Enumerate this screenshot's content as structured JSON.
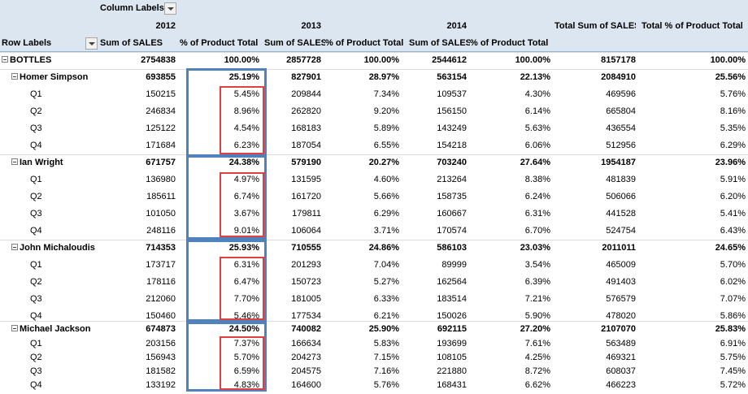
{
  "header": {
    "column_labels": "Column Labels",
    "row_labels": "Row Labels",
    "years": [
      "2012",
      "2013",
      "2014"
    ],
    "measure_sum": "Sum of SALES",
    "measure_pct": "% of Product Total",
    "total_sum": "Total Sum of SALES",
    "total_pct": "Total % of Product Total"
  },
  "rows": [
    {
      "label": "BOTTLES",
      "level": 0,
      "bold": true,
      "vals": [
        "2754838",
        "100.00%",
        "2857728",
        "100.00%",
        "2544612",
        "100.00%",
        "8157178",
        "100.00%"
      ]
    },
    {
      "label": "Homer Simpson",
      "level": 1,
      "bold": true,
      "vals": [
        "693855",
        "25.19%",
        "827901",
        "28.97%",
        "563154",
        "22.13%",
        "2084910",
        "25.56%"
      ]
    },
    {
      "label": "Q1",
      "level": 2,
      "bold": false,
      "vals": [
        "150215",
        "5.45%",
        "209844",
        "7.34%",
        "109537",
        "4.30%",
        "469596",
        "5.76%"
      ]
    },
    {
      "label": "Q2",
      "level": 2,
      "bold": false,
      "vals": [
        "246834",
        "8.96%",
        "262820",
        "9.20%",
        "156150",
        "6.14%",
        "665804",
        "8.16%"
      ]
    },
    {
      "label": "Q3",
      "level": 2,
      "bold": false,
      "vals": [
        "125122",
        "4.54%",
        "168183",
        "5.89%",
        "143249",
        "5.63%",
        "436554",
        "5.35%"
      ]
    },
    {
      "label": "Q4",
      "level": 2,
      "bold": false,
      "vals": [
        "171684",
        "6.23%",
        "187054",
        "6.55%",
        "154218",
        "6.06%",
        "512956",
        "6.29%"
      ]
    },
    {
      "label": "Ian Wright",
      "level": 1,
      "bold": true,
      "vals": [
        "671757",
        "24.38%",
        "579190",
        "20.27%",
        "703240",
        "27.64%",
        "1954187",
        "23.96%"
      ]
    },
    {
      "label": "Q1",
      "level": 2,
      "bold": false,
      "vals": [
        "136980",
        "4.97%",
        "131595",
        "4.60%",
        "213264",
        "8.38%",
        "481839",
        "5.91%"
      ]
    },
    {
      "label": "Q2",
      "level": 2,
      "bold": false,
      "vals": [
        "185611",
        "6.74%",
        "161720",
        "5.66%",
        "158735",
        "6.24%",
        "506066",
        "6.20%"
      ]
    },
    {
      "label": "Q3",
      "level": 2,
      "bold": false,
      "vals": [
        "101050",
        "3.67%",
        "179811",
        "6.29%",
        "160667",
        "6.31%",
        "441528",
        "5.41%"
      ]
    },
    {
      "label": "Q4",
      "level": 2,
      "bold": false,
      "vals": [
        "248116",
        "9.01%",
        "106064",
        "3.71%",
        "170574",
        "6.70%",
        "524754",
        "6.43%"
      ]
    },
    {
      "label": "John Michaloudis",
      "level": 1,
      "bold": true,
      "vals": [
        "714353",
        "25.93%",
        "710555",
        "24.86%",
        "586103",
        "23.03%",
        "2011011",
        "24.65%"
      ]
    },
    {
      "label": "Q1",
      "level": 2,
      "bold": false,
      "vals": [
        "173717",
        "6.31%",
        "201293",
        "7.04%",
        "89999",
        "3.54%",
        "465009",
        "5.70%"
      ]
    },
    {
      "label": "Q2",
      "level": 2,
      "bold": false,
      "vals": [
        "178116",
        "6.47%",
        "150723",
        "5.27%",
        "162564",
        "6.39%",
        "491403",
        "6.02%"
      ]
    },
    {
      "label": "Q3",
      "level": 2,
      "bold": false,
      "vals": [
        "212060",
        "7.70%",
        "181005",
        "6.33%",
        "183514",
        "7.21%",
        "576579",
        "7.07%"
      ]
    },
    {
      "label": "Q4",
      "level": 2,
      "bold": false,
      "vals": [
        "150460",
        "5.46%",
        "177534",
        "6.21%",
        "150026",
        "5.90%",
        "478020",
        "5.86%"
      ]
    },
    {
      "label": "Michael Jackson",
      "level": 1,
      "bold": true,
      "vals": [
        "674873",
        "24.50%",
        "740082",
        "25.90%",
        "692115",
        "27.20%",
        "2107070",
        "25.83%"
      ]
    },
    {
      "label": "Q1",
      "level": 2,
      "bold": false,
      "vals": [
        "203156",
        "7.37%",
        "166634",
        "5.83%",
        "193699",
        "7.61%",
        "563489",
        "6.91%"
      ]
    },
    {
      "label": "Q2",
      "level": 2,
      "bold": false,
      "vals": [
        "156943",
        "5.70%",
        "204273",
        "7.15%",
        "108105",
        "4.25%",
        "469321",
        "5.75%"
      ]
    },
    {
      "label": "Q3",
      "level": 2,
      "bold": false,
      "vals": [
        "181582",
        "6.59%",
        "204575",
        "7.16%",
        "221880",
        "8.72%",
        "608037",
        "7.45%"
      ]
    },
    {
      "label": "Q4",
      "level": 2,
      "bold": false,
      "vals": [
        "133192",
        "4.83%",
        "164600",
        "5.76%",
        "168431",
        "6.62%",
        "466223",
        "5.72%"
      ]
    }
  ],
  "colors": {
    "header_bg": "#dce6f1",
    "highlight_blue": "#4f81bd",
    "highlight_red": "#e04040"
  }
}
